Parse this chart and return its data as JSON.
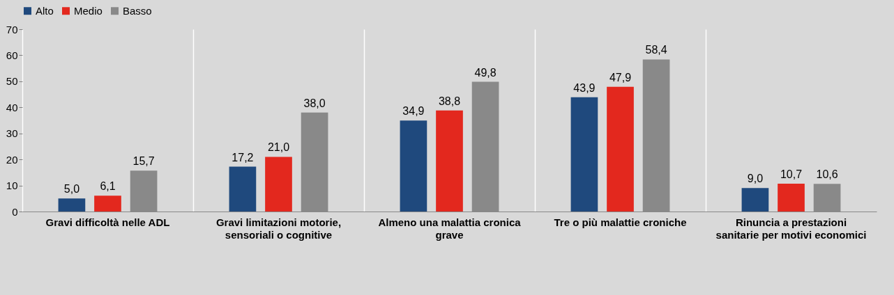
{
  "chart_data": {
    "type": "bar",
    "categories": [
      "Gravi difficoltà nelle ADL",
      "Gravi limitazioni motorie, sensoriali o cognitive",
      "Almeno una malattia cronica grave",
      "Tre o più malattie croniche",
      "Rinuncia a prestazioni sanitarie per motivi economici"
    ],
    "series": [
      {
        "name": "Alto",
        "color": "#1f497d",
        "values": [
          5.0,
          17.2,
          34.9,
          43.9,
          9.0
        ],
        "value_labels": [
          "5,0",
          "17,2",
          "34,9",
          "43,9",
          "9,0"
        ]
      },
      {
        "name": "Medio",
        "color": "#e3281e",
        "values": [
          6.1,
          21.0,
          38.8,
          47.9,
          10.7
        ],
        "value_labels": [
          "6,1",
          "21,0",
          "38,8",
          "47,9",
          "10,7"
        ]
      },
      {
        "name": "Basso",
        "color": "#898989",
        "values": [
          15.7,
          38.0,
          49.8,
          58.4,
          10.6
        ],
        "value_labels": [
          "15,7",
          "38,0",
          "49,8",
          "58,4",
          "10,6"
        ]
      }
    ],
    "ylim": [
      0,
      70
    ],
    "yticks": [
      0,
      10,
      20,
      30,
      40,
      50,
      60,
      70
    ],
    "grid": "x",
    "legend": "top"
  }
}
